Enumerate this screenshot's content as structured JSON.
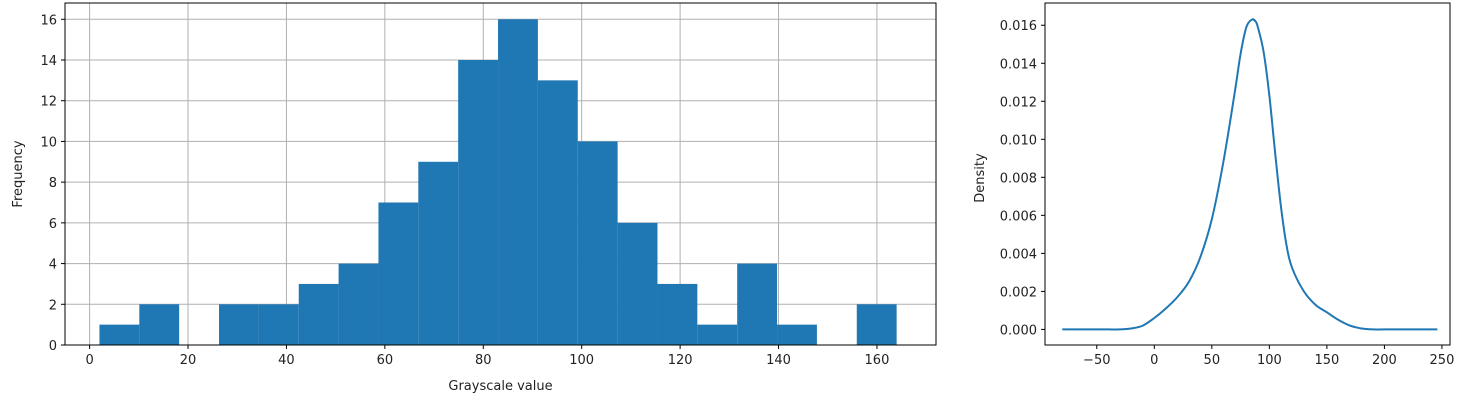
{
  "chart_data": [
    {
      "type": "bar",
      "subtype": "histogram",
      "xlabel": "Grayscale value",
      "ylabel": "Frequency",
      "xlim": [
        -5,
        172
      ],
      "ylim": [
        0,
        16.8
      ],
      "grid": true,
      "bar_color": "#1f77b4",
      "x_ticks": [
        0,
        20,
        40,
        60,
        80,
        100,
        120,
        140,
        160
      ],
      "y_ticks": [
        0,
        2,
        4,
        6,
        8,
        10,
        12,
        14,
        16
      ],
      "bins": [
        {
          "x0": 2.0,
          "x1": 10.1,
          "count": 1
        },
        {
          "x0": 10.1,
          "x1": 18.2,
          "count": 2
        },
        {
          "x0": 18.2,
          "x1": 26.3,
          "count": 0
        },
        {
          "x0": 26.3,
          "x1": 34.4,
          "count": 2
        },
        {
          "x0": 34.4,
          "x1": 42.5,
          "count": 2
        },
        {
          "x0": 42.5,
          "x1": 50.6,
          "count": 3
        },
        {
          "x0": 50.6,
          "x1": 58.7,
          "count": 4
        },
        {
          "x0": 58.7,
          "x1": 66.8,
          "count": 7
        },
        {
          "x0": 66.8,
          "x1": 74.9,
          "count": 9
        },
        {
          "x0": 74.9,
          "x1": 83.0,
          "count": 14
        },
        {
          "x0": 83.0,
          "x1": 91.1,
          "count": 16
        },
        {
          "x0": 91.1,
          "x1": 99.2,
          "count": 13
        },
        {
          "x0": 99.2,
          "x1": 107.3,
          "count": 10
        },
        {
          "x0": 107.3,
          "x1": 115.4,
          "count": 6
        },
        {
          "x0": 115.4,
          "x1": 123.5,
          "count": 3
        },
        {
          "x0": 123.5,
          "x1": 131.6,
          "count": 1
        },
        {
          "x0": 131.6,
          "x1": 139.7,
          "count": 4
        },
        {
          "x0": 139.7,
          "x1": 147.8,
          "count": 1
        },
        {
          "x0": 147.8,
          "x1": 155.9,
          "count": 0
        },
        {
          "x0": 155.9,
          "x1": 164.0,
          "count": 2
        }
      ]
    },
    {
      "type": "line",
      "subtype": "density",
      "xlabel": "",
      "ylabel": "Density",
      "xlim": [
        -95,
        257
      ],
      "ylim": [
        -0.00082,
        0.01717
      ],
      "grid": false,
      "line_color": "#1f77b4",
      "x_ticks": [
        -50,
        0,
        50,
        100,
        150,
        200,
        250
      ],
      "y_ticks": [
        0.0,
        0.002,
        0.004,
        0.006,
        0.008,
        0.01,
        0.012,
        0.014,
        0.016
      ],
      "y_tick_labels": [
        "0.000",
        "0.002",
        "0.004",
        "0.006",
        "0.008",
        "0.010",
        "0.012",
        "0.014",
        "0.016"
      ],
      "x": [
        -80,
        -60,
        -40,
        -30,
        -20,
        -10,
        0,
        10,
        20,
        30,
        40,
        50,
        60,
        70,
        75,
        80,
        85,
        88,
        90,
        95,
        100,
        105,
        110,
        115,
        120,
        130,
        140,
        150,
        160,
        170,
        180,
        190,
        200,
        220,
        246
      ],
      "y": [
        0.0,
        0.0,
        0.0,
        0.0,
        5e-05,
        0.0002,
        0.0006,
        0.0011,
        0.0017,
        0.0025,
        0.0038,
        0.0058,
        0.0088,
        0.0125,
        0.0145,
        0.0159,
        0.0163,
        0.0162,
        0.0159,
        0.0146,
        0.0123,
        0.0093,
        0.0065,
        0.0044,
        0.0032,
        0.002,
        0.0013,
        0.0009,
        0.0005,
        0.0002,
        5e-05,
        0.0,
        0.0,
        0.0,
        0.0
      ]
    }
  ]
}
